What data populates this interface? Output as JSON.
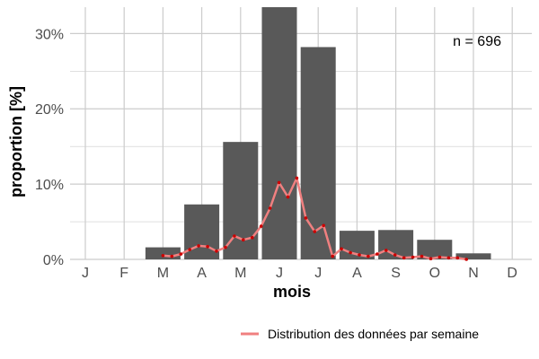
{
  "chart_data": {
    "type": "bar",
    "xlabel": "mois",
    "ylabel": "proportion [%]",
    "ylim": [
      0,
      33.5
    ],
    "y_ticks": [
      0,
      10,
      20,
      30
    ],
    "y_tick_labels": [
      "0%",
      "10%",
      "20%",
      "30%"
    ],
    "grid": true,
    "legend_position": "bottom-right",
    "annotation": "n = 696",
    "colors": {
      "bars": "#595959",
      "line": "#f08080",
      "points": "#cc0000",
      "grid": "#cccccc"
    },
    "categories": [
      "J",
      "F",
      "M",
      "A",
      "M",
      "J",
      "J",
      "A",
      "S",
      "O",
      "N",
      "D"
    ],
    "values": [
      0,
      0,
      1.6,
      7.3,
      15.6,
      33.5,
      28.2,
      3.8,
      3.9,
      2.6,
      0.8,
      0
    ],
    "series": [
      {
        "name": "Distribution des données par semaine",
        "x": [
          3.0,
          3.23,
          3.46,
          3.69,
          3.92,
          4.15,
          4.38,
          4.61,
          4.84,
          5.07,
          5.3,
          5.53,
          5.76,
          5.99,
          6.22,
          6.45,
          6.68,
          6.91,
          7.14,
          7.37,
          7.6,
          7.83,
          8.06,
          8.29,
          8.52,
          8.75,
          8.98,
          9.21,
          9.44,
          9.67,
          9.9,
          10.13,
          10.36,
          10.59,
          10.82
        ],
        "values": [
          0.5,
          0.4,
          0.7,
          1.3,
          1.8,
          1.7,
          1.1,
          1.6,
          3.1,
          2.6,
          2.9,
          4.4,
          6.8,
          10.2,
          8.3,
          10.8,
          5.5,
          3.7,
          4.5,
          0.4,
          1.4,
          0.9,
          0.6,
          0.4,
          0.7,
          1.2,
          0.6,
          0.2,
          0.3,
          0.4,
          0.1,
          0.3,
          0.2,
          0.2,
          0.0
        ]
      }
    ]
  }
}
